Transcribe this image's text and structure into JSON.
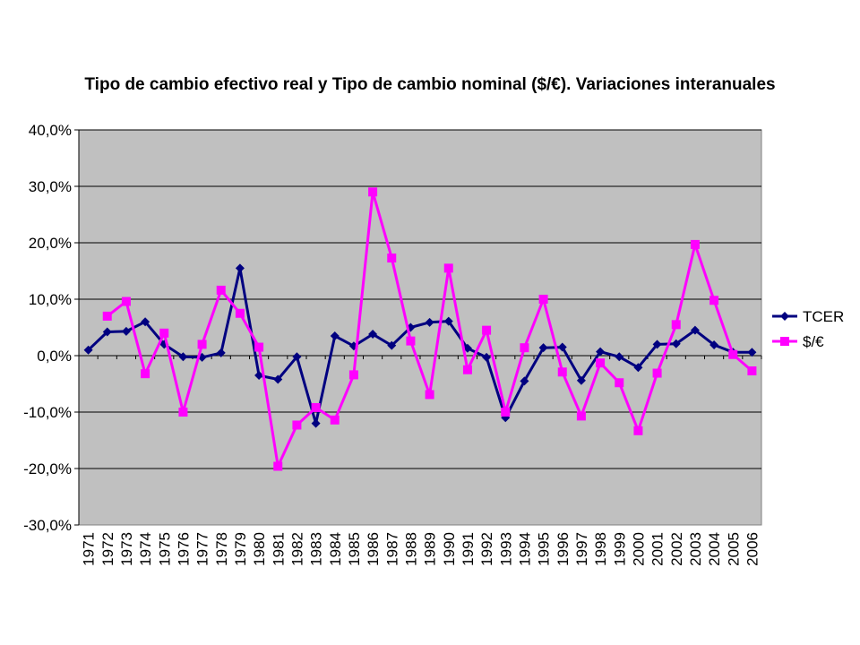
{
  "chart_data": {
    "type": "line",
    "title": "Tipo de cambio efectivo real y Tipo de cambio nominal ($/€). Variaciones interanuales",
    "xlabel": "",
    "ylabel": "",
    "x": [
      "1971",
      "1972",
      "1973",
      "1974",
      "1975",
      "1976",
      "1977",
      "1978",
      "1979",
      "1980",
      "1981",
      "1982",
      "1983",
      "1984",
      "1985",
      "1986",
      "1987",
      "1988",
      "1989",
      "1990",
      "1991",
      "1992",
      "1993",
      "1994",
      "1995",
      "1996",
      "1997",
      "1998",
      "1999",
      "2000",
      "2001",
      "2002",
      "2003",
      "2004",
      "2005",
      "2006"
    ],
    "ylim": [
      -30,
      40
    ],
    "yticks": [
      40,
      30,
      20,
      10,
      0,
      -10,
      -20,
      -30
    ],
    "ytick_labels": [
      "40,0%",
      "30,0%",
      "20,0%",
      "10,0%",
      "0,0%",
      "-10,0%",
      "-20,0%",
      "-30,0%"
    ],
    "grid": true,
    "legend_position": "right",
    "plot_background": "#c0c0c0",
    "series": [
      {
        "name": "TCER",
        "color": "#000080",
        "marker": "diamond",
        "values": [
          1.0,
          4.2,
          4.3,
          6.0,
          2.0,
          -0.2,
          -0.3,
          0.5,
          15.5,
          -3.5,
          -4.2,
          -0.2,
          -12.0,
          3.5,
          1.7,
          3.8,
          1.8,
          5.0,
          5.9,
          6.1,
          1.3,
          -0.3,
          -11.0,
          -4.5,
          1.4,
          1.5,
          -4.4,
          0.7,
          -0.2,
          -2.1,
          2.0,
          2.1,
          4.5,
          1.9,
          0.6,
          0.6
        ]
      },
      {
        "name": "$/€",
        "color": "#ff00ff",
        "marker": "square",
        "values": [
          null,
          7.0,
          9.6,
          -3.2,
          4.0,
          -10.0,
          2.0,
          11.6,
          7.5,
          1.5,
          -19.6,
          -12.3,
          -9.2,
          -11.4,
          -3.4,
          29.0,
          17.3,
          2.6,
          -6.9,
          15.5,
          -2.5,
          4.5,
          -10.0,
          1.4,
          10.0,
          -2.9,
          -10.7,
          -1.3,
          -4.8,
          -13.3,
          -3.1,
          5.5,
          19.7,
          9.8,
          0.2,
          -2.7
        ]
      }
    ]
  }
}
